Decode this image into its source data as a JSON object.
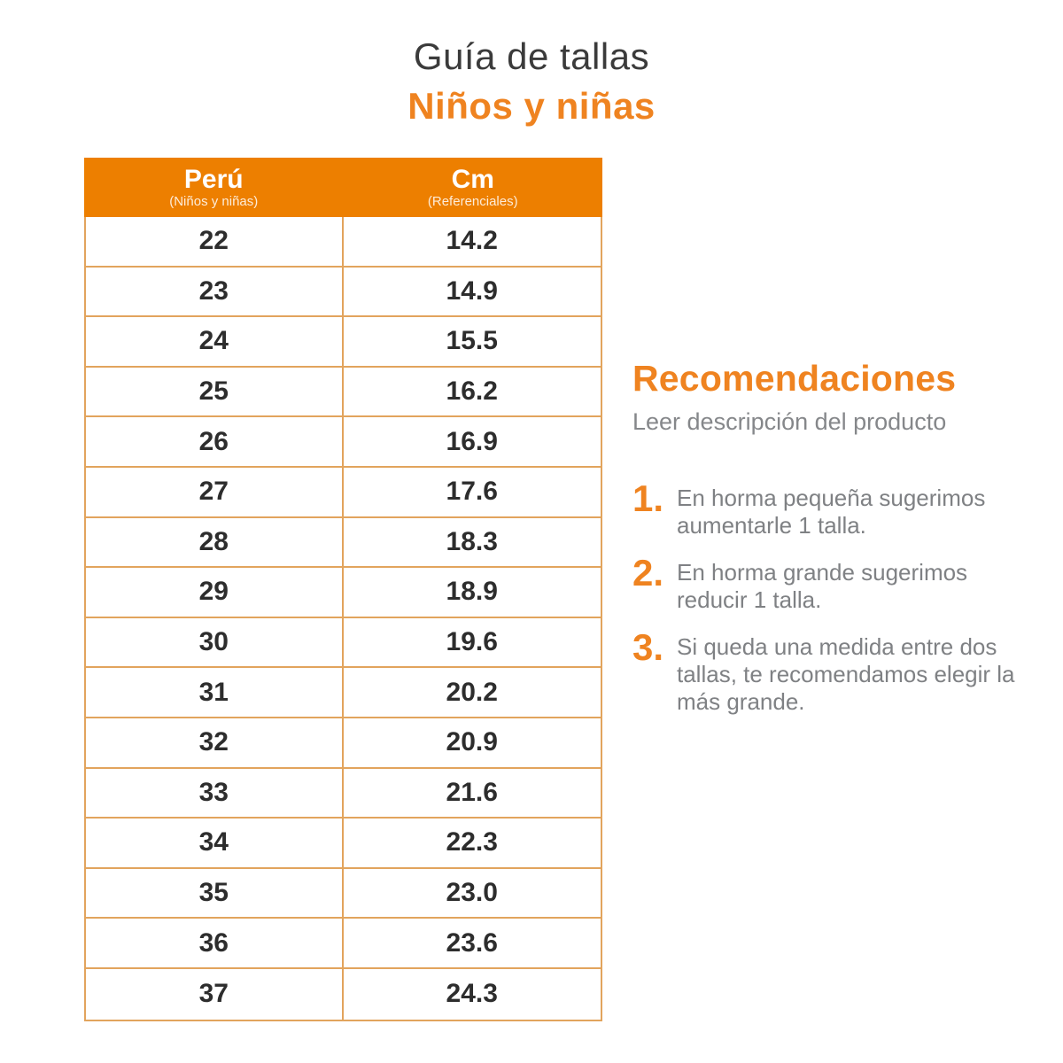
{
  "title": "Guía de tallas",
  "subtitle": "Niños y niñas",
  "colors": {
    "accent_orange": "#ef8320",
    "header_orange": "#ed7f00",
    "table_border": "#e2a45d",
    "text_dark": "#3b3b3b",
    "text_gray": "#7f8184"
  },
  "table": {
    "columns": [
      {
        "label": "Perú",
        "sublabel": "(Niños y niñas)"
      },
      {
        "label": "Cm",
        "sublabel": "(Referenciales)"
      }
    ],
    "rows": [
      {
        "peru": "22",
        "cm": "14.2"
      },
      {
        "peru": "23",
        "cm": "14.9"
      },
      {
        "peru": "24",
        "cm": "15.5"
      },
      {
        "peru": "25",
        "cm": "16.2"
      },
      {
        "peru": "26",
        "cm": "16.9"
      },
      {
        "peru": "27",
        "cm": "17.6"
      },
      {
        "peru": "28",
        "cm": "18.3"
      },
      {
        "peru": "29",
        "cm": "18.9"
      },
      {
        "peru": "30",
        "cm": "19.6"
      },
      {
        "peru": "31",
        "cm": "20.2"
      },
      {
        "peru": "32",
        "cm": "20.9"
      },
      {
        "peru": "33",
        "cm": "21.6"
      },
      {
        "peru": "34",
        "cm": "22.3"
      },
      {
        "peru": "35",
        "cm": "23.0"
      },
      {
        "peru": "36",
        "cm": "23.6"
      },
      {
        "peru": "37",
        "cm": "24.3"
      }
    ]
  },
  "recommendations": {
    "heading": "Recomendaciones",
    "subheading": "Leer descripción del producto",
    "items": [
      {
        "number": "1.",
        "text": "En horma pequeña sugerimos aumentarle 1 talla."
      },
      {
        "number": "2.",
        "text": "En horma grande sugerimos reducir 1 talla."
      },
      {
        "number": "3.",
        "text": "Si queda una medida entre dos tallas, te recomendamos elegir la más grande."
      }
    ]
  }
}
